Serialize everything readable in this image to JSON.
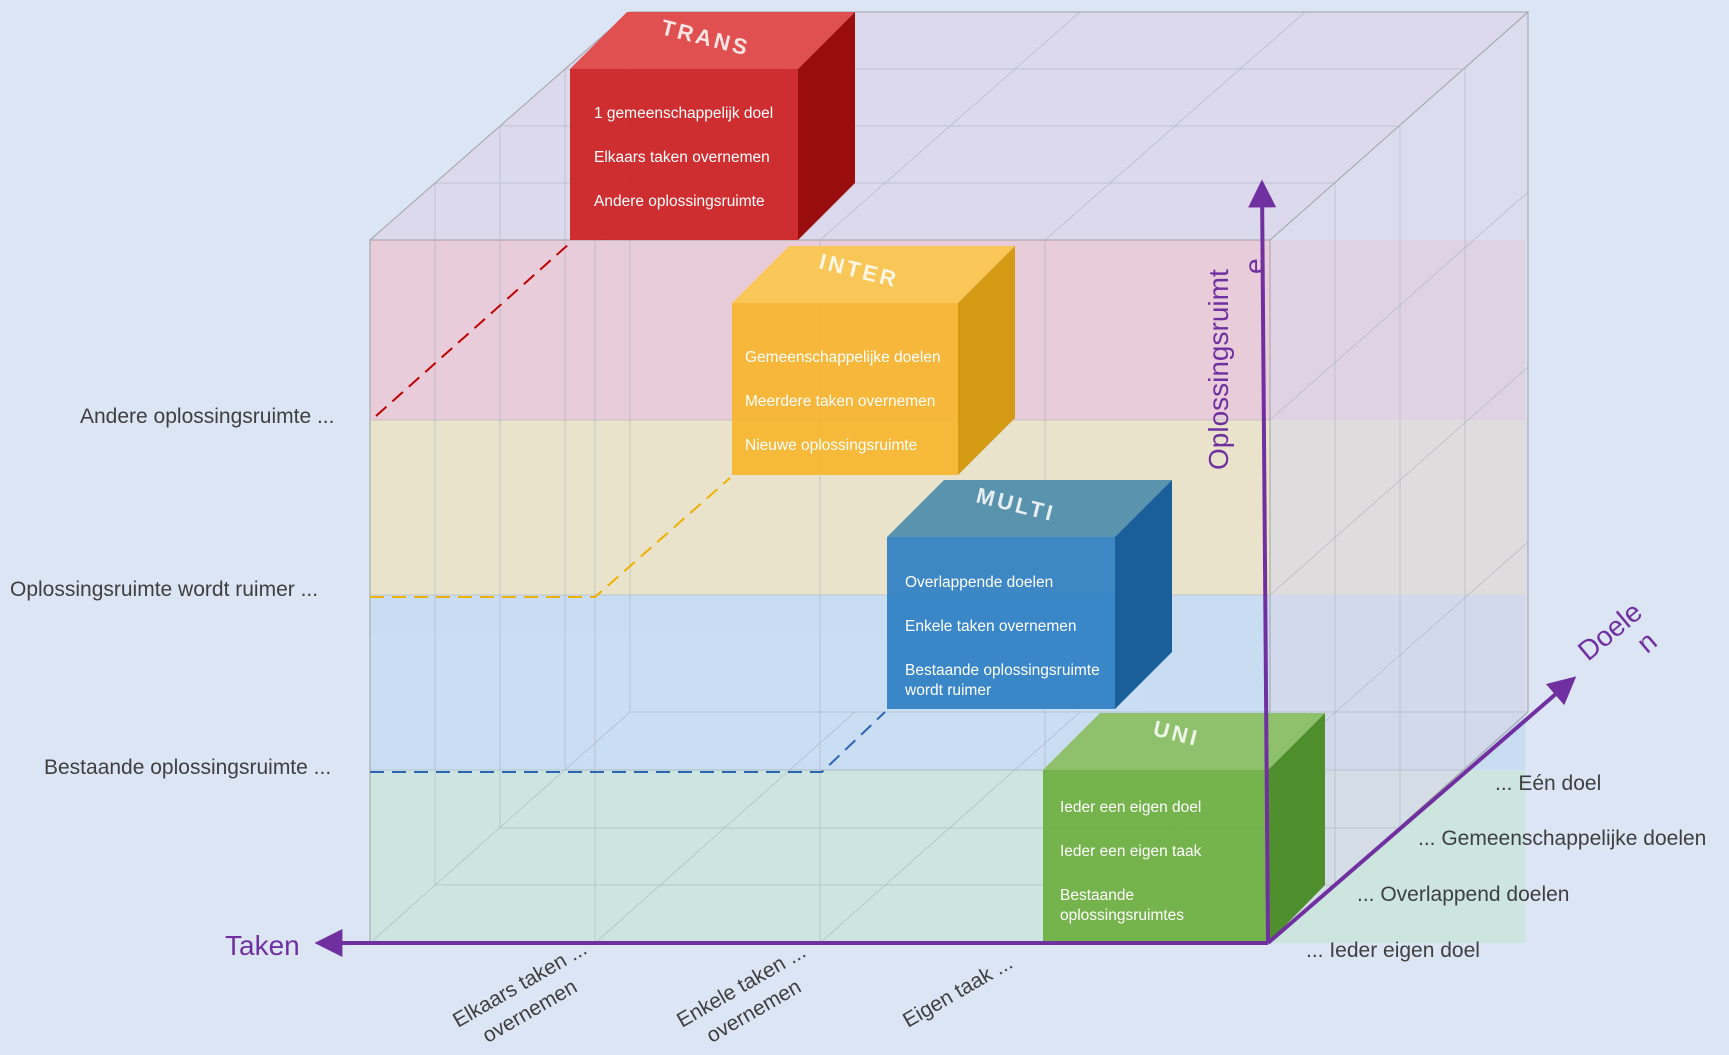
{
  "cubes": {
    "trans": {
      "title": "TRANS",
      "lines": [
        "1 gemeenschappelijk doel",
        "Elkaars  taken overnemen",
        "Andere oplossingsruimte"
      ],
      "color": "#cc1f1f"
    },
    "inter": {
      "title": "INTER",
      "lines": [
        "Gemeenschappelijke doelen",
        "Meerdere  taken overnemen",
        "Nieuwe oplossingsruimte"
      ],
      "color": "#f7b52c"
    },
    "multi": {
      "title": "MULTI",
      "lines": [
        "Overlappende doelen",
        "Enkele taken overnemen",
        "Bestaande oplossingsruimte",
        "wordt ruimer"
      ],
      "color": "#2e7fc4"
    },
    "uni": {
      "title": "UNI",
      "lines": [
        "Ieder een eigen doel",
        "Ieder een eigen taak",
        "Bestaande",
        "oplossingsruimtes"
      ],
      "color": "#70b043"
    }
  },
  "axes": {
    "taken": "Taken",
    "oplossingsruimte": [
      "Oplossingsruimt",
      "e"
    ],
    "doelen": [
      "Doele",
      "n"
    ]
  },
  "left_labels": [
    "Andere oplossingsruimte ...",
    "Oplossingsruimte wordt ruimer ...",
    "Bestaande oplossingsruimte ..."
  ],
  "right_labels": [
    "... Eén doel",
    "... Gemeenschappelijke doelen",
    "... Overlappend doelen",
    "... Ieder eigen doel"
  ],
  "bottom_labels": [
    [
      "Elkaars taken ...",
      "overnemen"
    ],
    [
      "Enkele taken ...",
      "overnemen"
    ],
    [
      "Eigen taak ..."
    ]
  ],
  "colors": {
    "axis": "#7030a0",
    "background": "#dce5f4"
  }
}
